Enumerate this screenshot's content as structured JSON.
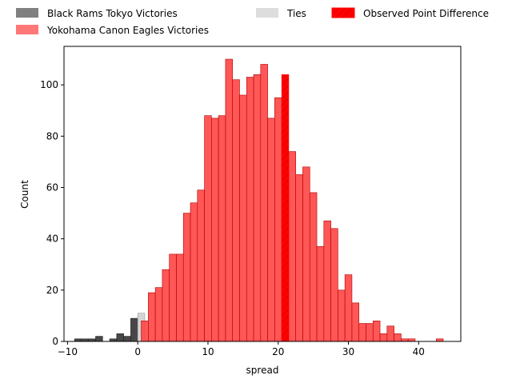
{
  "chart_data": {
    "type": "bar",
    "xlabel": "spread",
    "ylabel": "Count",
    "xlim": [
      -10.5,
      46
    ],
    "ylim": [
      0,
      115
    ],
    "xticks": [
      -10,
      0,
      10,
      20,
      30,
      40
    ],
    "yticks": [
      0,
      20,
      40,
      60,
      80,
      100
    ],
    "bin_width": 1,
    "legend": {
      "placement": "top",
      "entries": [
        {
          "label": "Black Rams Tokyo Victories",
          "color": "#808080"
        },
        {
          "label": "Yokohama Canon Eagles Victories",
          "color": "#ff7777"
        },
        {
          "label": "Ties",
          "color": "#dddddd"
        },
        {
          "label": "Observed Point Difference",
          "color": "#ff3333",
          "hatch": true
        }
      ]
    },
    "series": [
      {
        "name": "Black Rams Tokyo Victories",
        "color": "#333333",
        "bins": [
          {
            "x": -9,
            "count": 1
          },
          {
            "x": -8,
            "count": 1
          },
          {
            "x": -7,
            "count": 1
          },
          {
            "x": -6,
            "count": 2
          },
          {
            "x": -4,
            "count": 1
          },
          {
            "x": -3,
            "count": 3
          },
          {
            "x": -2,
            "count": 2
          },
          {
            "x": -1,
            "count": 9
          }
        ]
      },
      {
        "name": "Ties",
        "color": "#d0d0d0",
        "bins": [
          {
            "x": 0,
            "count": 11
          }
        ]
      },
      {
        "name": "Yokohama Canon Eagles Victories",
        "color": "#ff4444",
        "bins": [
          {
            "x": 0.5,
            "count": 8
          },
          {
            "x": 1.5,
            "count": 19
          },
          {
            "x": 2.5,
            "count": 21
          },
          {
            "x": 3.5,
            "count": 28
          },
          {
            "x": 4.5,
            "count": 34
          },
          {
            "x": 5.5,
            "count": 34
          },
          {
            "x": 6.5,
            "count": 50
          },
          {
            "x": 7.5,
            "count": 54
          },
          {
            "x": 8.5,
            "count": 59
          },
          {
            "x": 9.5,
            "count": 88
          },
          {
            "x": 10.5,
            "count": 87
          },
          {
            "x": 11.5,
            "count": 88
          },
          {
            "x": 12.5,
            "count": 110
          },
          {
            "x": 13.5,
            "count": 102
          },
          {
            "x": 14.5,
            "count": 96
          },
          {
            "x": 15.5,
            "count": 103
          },
          {
            "x": 16.5,
            "count": 104
          },
          {
            "x": 17.5,
            "count": 108
          },
          {
            "x": 18.5,
            "count": 87
          },
          {
            "x": 19.5,
            "count": 95
          },
          {
            "x": 21.5,
            "count": 74
          },
          {
            "x": 22.5,
            "count": 65
          },
          {
            "x": 23.5,
            "count": 68
          },
          {
            "x": 24.5,
            "count": 58
          },
          {
            "x": 25.5,
            "count": 37
          },
          {
            "x": 26.5,
            "count": 47
          },
          {
            "x": 27.5,
            "count": 44
          },
          {
            "x": 28.5,
            "count": 20
          },
          {
            "x": 29.5,
            "count": 26
          },
          {
            "x": 30.5,
            "count": 15
          },
          {
            "x": 31.5,
            "count": 7
          },
          {
            "x": 32.5,
            "count": 7
          },
          {
            "x": 33.5,
            "count": 8
          },
          {
            "x": 34.5,
            "count": 3
          },
          {
            "x": 35.5,
            "count": 6
          },
          {
            "x": 36.5,
            "count": 3
          },
          {
            "x": 37.5,
            "count": 1
          },
          {
            "x": 38.5,
            "count": 1
          },
          {
            "x": 42.5,
            "count": 1
          }
        ]
      },
      {
        "name": "Observed Point Difference",
        "color": "#ff0000",
        "hatch": true,
        "bins": [
          {
            "x": 20.5,
            "count": 104
          }
        ]
      }
    ]
  }
}
